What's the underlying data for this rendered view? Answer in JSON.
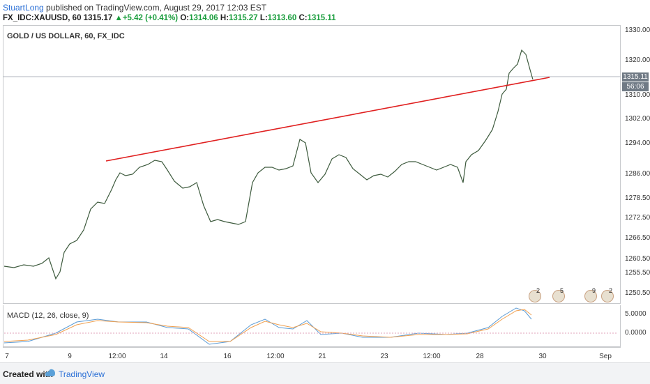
{
  "header": {
    "author": "StuartLong",
    "published_text": " published on TradingView.com, August 29, 2017 12:03 EST",
    "symbol": "FX_IDC:XAUUSD, 60",
    "last": "1315.17",
    "change": "+5.42 (+0.41%)",
    "o_label": "O:",
    "o_val": "1314.06",
    "h_label": "H:",
    "h_val": "1315.27",
    "l_label": "L:",
    "l_val": "1313.60",
    "c_label": "C:",
    "c_val": "1315.11"
  },
  "chart": {
    "title": "GOLD / US DOLLAR, 60, FX_IDC",
    "price_labels": [
      "1330.00",
      "1320.00",
      "1310.00",
      "1302.00",
      "1294.00",
      "1286.00",
      "1278.50",
      "1272.50",
      "1266.50",
      "1260.50",
      "1255.50",
      "1250.50"
    ],
    "last_price_tag": "1315.11",
    "countdown_tag": "56:06",
    "x_labels": [
      "7",
      "9",
      "12:00",
      "14",
      "16",
      "12:00",
      "21",
      "23",
      "12:00",
      "28",
      "30",
      "Sep"
    ],
    "event_counts": [
      "2",
      "5",
      "9",
      "2"
    ],
    "colors": {
      "trendline": "#e02020",
      "bull": "#2e7d32",
      "bear": "#8b1a1a",
      "macd": "#5b9bd5",
      "signal": "#f0a050",
      "hist": "#e0407a"
    }
  },
  "macd": {
    "title": "MACD (12, 26, close, 9)",
    "labels": [
      "5.0000",
      "0.0000"
    ]
  },
  "footer": {
    "created": "Created with",
    "brand": "TradingView"
  }
}
